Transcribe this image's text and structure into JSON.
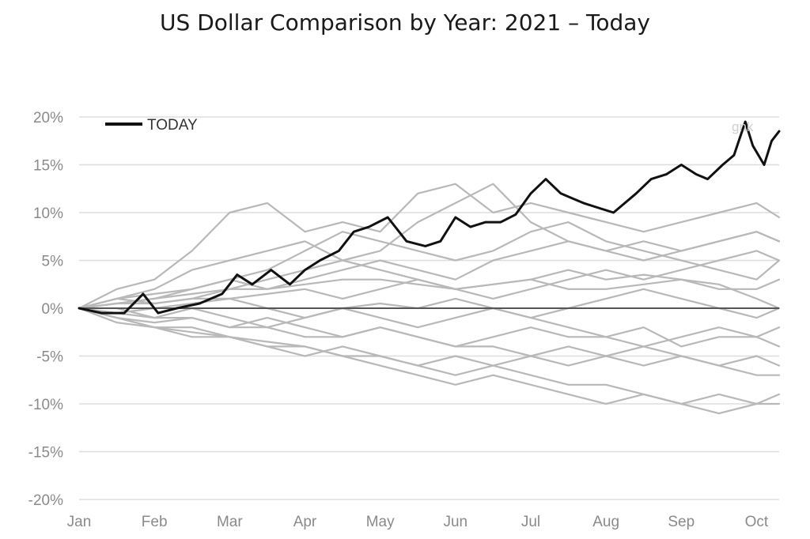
{
  "chart_data": {
    "type": "line",
    "title": "US Dollar Comparison by Year: 2021 – Today",
    "xlabel": "",
    "ylabel": "",
    "x_ticks": [
      "Jan",
      "Feb",
      "Mar",
      "Apr",
      "May",
      "Jun",
      "Jul",
      "Aug",
      "Sep",
      "Oct"
    ],
    "y_ticks": [
      "20%",
      "15%",
      "10%",
      "5%",
      "0%",
      "-5%",
      "-10%",
      "-15%",
      "-20%"
    ],
    "ylim": [
      -20,
      20
    ],
    "xlim": [
      0,
      9.3
    ],
    "grid": true,
    "legend": {
      "placement": "top-left",
      "entries": [
        "TODAY"
      ]
    },
    "watermark": "gnk",
    "colors": {
      "highlight": "#111111",
      "others": "#b8b8b8",
      "grid": "#dddddd",
      "zero_line": "#555555"
    },
    "series": [
      {
        "name": "TODAY",
        "highlight": true,
        "x": [
          0,
          0.3,
          0.6,
          0.85,
          1.05,
          1.3,
          1.6,
          1.9,
          2.1,
          2.3,
          2.55,
          2.8,
          3.0,
          3.2,
          3.45,
          3.65,
          3.85,
          4.1,
          4.35,
          4.6,
          4.8,
          5.0,
          5.2,
          5.4,
          5.6,
          5.8,
          6.0,
          6.2,
          6.4,
          6.55,
          6.7,
          6.9,
          7.1,
          7.4,
          7.6,
          7.8,
          8.0,
          8.2,
          8.35,
          8.55,
          8.7,
          8.85,
          8.95,
          9.1,
          9.2,
          9.3
        ],
        "y": [
          0,
          -0.5,
          -0.5,
          1.5,
          -0.5,
          0,
          0.5,
          1.5,
          3.5,
          2.5,
          4,
          2.5,
          4,
          5,
          6,
          8,
          8.5,
          9.5,
          7,
          6.5,
          7,
          9.5,
          8.5,
          9,
          9,
          9.8,
          12,
          13.5,
          12,
          11.5,
          11,
          10.5,
          10,
          12,
          13.5,
          14,
          15,
          14,
          13.5,
          15,
          16,
          19.5,
          17,
          15,
          17.5,
          18.5
        ]
      },
      {
        "name": "",
        "x": [
          0,
          0.5,
          1,
          1.5,
          2,
          2.5,
          3,
          3.5,
          4,
          4.5,
          5,
          5.5,
          6,
          6.5,
          7,
          7.5,
          8,
          8.5,
          9,
          9.3
        ],
        "y": [
          0,
          2,
          3,
          6,
          10,
          11,
          8,
          9,
          8,
          12,
          13,
          10,
          11,
          10,
          9,
          8,
          9,
          10,
          11,
          9.5
        ]
      },
      {
        "name": "",
        "x": [
          0,
          0.5,
          1,
          1.5,
          2,
          2.5,
          3,
          3.5,
          4,
          4.5,
          5,
          5.5,
          6,
          6.5,
          7,
          7.5,
          8,
          8.5,
          9,
          9.3
        ],
        "y": [
          0,
          1,
          2,
          4,
          5,
          6,
          7,
          5,
          6,
          9,
          11,
          13,
          9,
          7,
          6,
          5,
          6,
          7,
          8,
          7
        ]
      },
      {
        "name": "",
        "x": [
          0,
          0.5,
          1,
          1.5,
          2,
          2.5,
          3,
          3.5,
          4,
          4.5,
          5,
          5.5,
          6,
          6.5,
          7,
          7.5,
          8,
          8.5,
          9,
          9.3
        ],
        "y": [
          0,
          0.5,
          1,
          2,
          3,
          4,
          6,
          8,
          7,
          6,
          5,
          6,
          8,
          9,
          7,
          6,
          5,
          4,
          3,
          5
        ]
      },
      {
        "name": "",
        "x": [
          0,
          0.5,
          1,
          1.5,
          2,
          2.5,
          3,
          3.5,
          4,
          4.5,
          5,
          5.5,
          6,
          6.5,
          7,
          7.5,
          8,
          8.5,
          9,
          9.3
        ],
        "y": [
          0,
          1,
          0.5,
          1,
          2,
          3,
          4,
          5,
          4,
          3,
          2,
          2.5,
          3,
          4,
          3,
          3.5,
          3,
          2,
          2,
          3
        ]
      },
      {
        "name": "",
        "x": [
          0,
          0.5,
          1,
          1.5,
          2,
          2.5,
          3,
          3.5,
          4,
          4.5,
          5,
          5.5,
          6,
          6.5,
          7,
          7.5,
          8,
          8.5,
          9,
          9.3
        ],
        "y": [
          0,
          0.5,
          1,
          1.5,
          2,
          2,
          2.5,
          3,
          3,
          2.5,
          2,
          2.5,
          3,
          2,
          2,
          2.5,
          3,
          2.5,
          1,
          0
        ]
      },
      {
        "name": "",
        "x": [
          0,
          0.5,
          1,
          1.5,
          2,
          2.5,
          3,
          3.5,
          4,
          4.5,
          5,
          5.5,
          6,
          6.5,
          7,
          7.5,
          8,
          8.5,
          9,
          9.3
        ],
        "y": [
          0,
          -0.5,
          0,
          0.5,
          1,
          0,
          -1,
          0,
          0.5,
          0,
          1,
          0,
          -1,
          0,
          1,
          2,
          1,
          0,
          -1,
          0
        ]
      },
      {
        "name": "",
        "x": [
          0,
          0.5,
          1,
          1.5,
          2,
          2.5,
          3,
          3.5,
          4,
          4.5,
          5,
          5.5,
          6,
          6.5,
          7,
          7.5,
          8,
          8.5,
          9,
          9.3
        ],
        "y": [
          0,
          -1,
          -1.5,
          -1,
          -2,
          -1,
          -2,
          -3,
          -2,
          -3,
          -4,
          -3,
          -2,
          -3,
          -3,
          -4,
          -3,
          -2,
          -3,
          -2
        ]
      },
      {
        "name": "",
        "x": [
          0,
          0.5,
          1,
          1.5,
          2,
          2.5,
          3,
          3.5,
          4,
          4.5,
          5,
          5.5,
          6,
          6.5,
          7,
          7.5,
          8,
          8.5,
          9,
          9.3
        ],
        "y": [
          0,
          -1,
          -2,
          -3,
          -3,
          -4,
          -5,
          -4,
          -5,
          -6,
          -5,
          -6,
          -5,
          -6,
          -5,
          -4,
          -5,
          -6,
          -5,
          -6
        ]
      },
      {
        "name": "",
        "x": [
          0,
          0.5,
          1,
          1.5,
          2,
          2.5,
          3,
          3.5,
          4,
          4.5,
          5,
          5.5,
          6,
          6.5,
          7,
          7.5,
          8,
          8.5,
          9,
          9.3
        ],
        "y": [
          0,
          -1.5,
          -2,
          -2.5,
          -3,
          -4,
          -4,
          -5,
          -6,
          -7,
          -8,
          -7,
          -8,
          -9,
          -10,
          -9,
          -10,
          -9,
          -10,
          -9
        ]
      },
      {
        "name": "",
        "x": [
          0,
          0.5,
          1,
          1.5,
          2,
          2.5,
          3,
          3.5,
          4,
          4.5,
          5,
          5.5,
          6,
          6.5,
          7,
          7.5,
          8,
          8.5,
          9,
          9.3
        ],
        "y": [
          0,
          -1,
          -2,
          -2,
          -3,
          -3.5,
          -4,
          -5,
          -5,
          -6,
          -7,
          -6,
          -7,
          -8,
          -8,
          -9,
          -10,
          -11,
          -10,
          -10
        ]
      },
      {
        "name": "",
        "x": [
          0,
          0.5,
          1,
          1.5,
          2,
          2.5,
          3,
          3.5,
          4,
          4.5,
          5,
          5.5,
          6,
          6.5,
          7,
          7.5,
          8,
          8.5,
          9,
          9.3
        ],
        "y": [
          0,
          -0.5,
          -1,
          -1,
          -2,
          -2,
          -3,
          -3,
          -2,
          -3,
          -4,
          -4,
          -5,
          -4,
          -5,
          -6,
          -5,
          -6,
          -7,
          -7
        ]
      },
      {
        "name": "",
        "x": [
          0,
          0.5,
          1,
          1.5,
          2,
          2.5,
          3,
          3.5,
          4,
          4.5,
          5,
          5.5,
          6,
          6.5,
          7,
          7.5,
          8,
          8.5,
          9,
          9.3
        ],
        "y": [
          0,
          0,
          -1,
          0,
          -1,
          -2,
          -1,
          0,
          -1,
          -2,
          -1,
          0,
          -1,
          -2,
          -3,
          -2,
          -4,
          -3,
          -3,
          -4
        ]
      },
      {
        "name": "",
        "x": [
          0,
          0.5,
          1,
          1.5,
          2,
          2.5,
          3,
          3.5,
          4,
          4.5,
          5,
          5.5,
          6,
          6.5,
          7,
          7.5,
          8,
          8.5,
          9,
          9.3
        ],
        "y": [
          0,
          1,
          1.5,
          2,
          3,
          2,
          3,
          4,
          5,
          4,
          3,
          5,
          6,
          7,
          6,
          7,
          6,
          7,
          8,
          7
        ]
      },
      {
        "name": "",
        "x": [
          0,
          0.5,
          1,
          1.5,
          2,
          2.5,
          3,
          3.5,
          4,
          4.5,
          5,
          5.5,
          6,
          6.5,
          7,
          7.5,
          8,
          8.5,
          9,
          9.3
        ],
        "y": [
          0,
          0.5,
          0.5,
          1,
          1,
          1.5,
          2,
          1,
          2,
          3,
          2,
          1,
          2,
          3,
          4,
          3,
          4,
          5,
          6,
          5
        ]
      }
    ]
  }
}
